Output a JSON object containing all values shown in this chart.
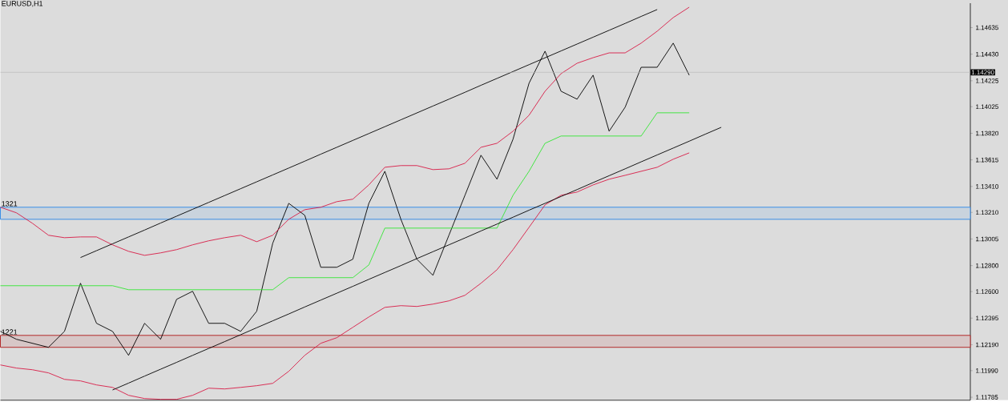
{
  "chart_data": {
    "type": "line",
    "title": "EURUSD,H1",
    "categories": [
      null,
      null,
      null,
      null,
      null,
      null,
      null,
      null,
      null,
      null,
      null,
      null,
      null,
      null,
      null,
      null,
      null,
      null,
      null,
      null,
      null,
      null,
      null,
      null,
      null,
      null,
      null,
      null,
      null,
      null,
      null,
      null,
      null,
      null,
      null,
      null,
      null,
      null,
      null,
      null,
      null,
      null,
      null,
      null,
      null,
      null,
      null,
      null,
      null,
      null,
      null,
      null,
      null,
      null,
      null,
      null,
      null,
      null,
      null,
      null,
      null
    ],
    "series": [
      {
        "color": "#000000",
        "values": [
          1.12293,
          1.12232,
          1.12201,
          1.1217,
          1.12293,
          1.12664,
          1.12355,
          1.12293,
          1.12108,
          1.12355,
          1.12232,
          1.1254,
          1.12602,
          1.12355,
          1.12355,
          1.12293,
          1.12448,
          1.12972,
          1.1328,
          1.13188,
          1.12787,
          1.12787,
          1.12849,
          1.1328,
          1.13527,
          1.13157,
          1.12849,
          1.12725,
          1.13034,
          1.13342,
          1.13651,
          1.13466,
          1.13774,
          1.14206,
          1.14453,
          1.14144,
          1.14083,
          1.14268,
          1.13836,
          1.14021,
          1.14329,
          1.14329,
          1.14515,
          1.14268,
          null,
          null,
          null,
          null,
          null,
          null,
          null,
          null,
          null,
          null,
          null,
          null,
          null,
          null,
          null,
          null,
          null
        ]
      },
      {
        "color": "#d81b45",
        "values": [
          1.1325,
          1.13207,
          1.13126,
          1.13034,
          1.13015,
          1.13021,
          1.13021,
          1.1296,
          1.1291,
          1.12879,
          1.12898,
          1.12923,
          1.1296,
          1.12991,
          1.13015,
          1.13034,
          1.12984,
          1.13034,
          1.13157,
          1.13231,
          1.1325,
          1.13293,
          1.13312,
          1.13422,
          1.13558,
          1.13571,
          1.13571,
          1.1354,
          1.13546,
          1.13589,
          1.13712,
          1.13743,
          1.13836,
          1.13959,
          1.14144,
          1.1428,
          1.1436,
          1.14403,
          1.1444,
          1.1444,
          1.14515,
          1.14607,
          1.14712,
          1.14792,
          null,
          null,
          null,
          null,
          null,
          null,
          null,
          null,
          null,
          null,
          null,
          null,
          null,
          null,
          null,
          null,
          null
        ]
      },
      {
        "color": "#d81b45",
        "values": [
          1.12034,
          1.1201,
          1.11997,
          1.11973,
          1.11923,
          1.11911,
          1.1188,
          1.11861,
          1.118,
          1.11775,
          1.11769,
          1.11769,
          1.118,
          1.11855,
          1.11849,
          1.11861,
          1.11874,
          1.11892,
          1.11985,
          1.12108,
          1.12201,
          1.12244,
          1.12324,
          1.12404,
          1.12478,
          1.12491,
          1.12485,
          1.12503,
          1.12528,
          1.12571,
          1.12664,
          1.12768,
          1.12923,
          1.13095,
          1.13268,
          1.13342,
          1.13367,
          1.13422,
          1.13466,
          1.13496,
          1.13527,
          1.13558,
          1.1362,
          1.13669,
          null,
          null,
          null,
          null,
          null,
          null,
          null,
          null,
          null,
          null,
          null,
          null,
          null,
          null,
          null,
          null,
          null
        ]
      },
      {
        "color": "#33e633",
        "values": [
          1.12645,
          1.12645,
          1.12645,
          1.12645,
          1.12645,
          1.12645,
          1.12645,
          1.12645,
          1.12614,
          1.12614,
          1.12614,
          1.12614,
          1.12614,
          1.12614,
          1.12614,
          1.12614,
          1.12614,
          1.12614,
          1.12707,
          1.12707,
          1.12707,
          1.12707,
          1.12707,
          1.12805,
          1.13089,
          1.13089,
          1.13089,
          1.13089,
          1.13089,
          1.13089,
          1.13089,
          1.13089,
          1.13342,
          1.13527,
          1.13743,
          1.13799,
          1.13799,
          1.13799,
          1.13799,
          1.13799,
          1.13799,
          1.13978,
          1.13978,
          1.13978,
          null,
          null,
          null,
          null,
          null,
          null,
          null,
          null,
          null,
          null,
          null,
          null,
          null,
          null,
          null,
          null,
          null
        ]
      },
      {
        "color": "#000000",
        "values": [
          null,
          null,
          null,
          null,
          null,
          1.12862,
          1.12915,
          1.12968,
          1.13021,
          1.13074,
          1.13128,
          1.13181,
          1.13234,
          1.13287,
          1.1334,
          1.13393,
          1.13446,
          1.13499,
          1.13552,
          1.13605,
          1.13659,
          1.13712,
          1.13765,
          1.13818,
          1.13871,
          1.13924,
          1.13977,
          1.1403,
          1.14083,
          1.14136,
          1.1419,
          1.14243,
          1.14296,
          1.14349,
          1.14402,
          1.14455,
          1.14508,
          1.14561,
          1.14614,
          1.14667,
          1.14721,
          1.14774,
          null,
          null,
          null,
          null,
          null,
          null,
          null,
          null,
          null,
          null,
          null,
          null,
          null,
          null,
          null,
          null,
          null,
          null,
          null
        ]
      },
      {
        "color": "#000000",
        "values": [
          null,
          null,
          null,
          null,
          null,
          null,
          null,
          1.11841,
          1.11894,
          1.11948,
          1.12001,
          1.12054,
          1.12108,
          1.12161,
          1.12214,
          1.12267,
          1.12321,
          1.12374,
          1.12427,
          1.12481,
          1.12534,
          1.12587,
          1.1264,
          1.12694,
          1.12747,
          1.128,
          1.12854,
          1.12907,
          1.1296,
          1.13013,
          1.13067,
          1.1312,
          1.13173,
          1.13227,
          1.1328,
          1.13333,
          1.13386,
          1.1344,
          1.13493,
          1.13546,
          1.136,
          1.13653,
          1.13706,
          1.13759,
          1.13813,
          1.13866,
          null,
          null,
          null,
          null,
          null,
          null,
          null,
          null,
          null,
          null,
          null,
          null,
          null,
          null,
          null
        ]
      }
    ],
    "ylim": [
      1.11762,
      1.14823
    ],
    "yticks": [
      1.14635,
      {
        "value": 1.1443,
        "label": "1.14430"
      },
      1.14225,
      1.14025,
      {
        "value": 1.1382,
        "label": "1.13820"
      },
      1.13615,
      {
        "value": 1.1341,
        "label": "1.13410"
      },
      {
        "value": 1.1321,
        "label": "1.13210"
      },
      1.13005,
      {
        "value": 1.128,
        "label": "1.12800"
      },
      {
        "value": 1.126,
        "label": "1.12600"
      },
      1.12395,
      {
        "value": 1.1219,
        "label": "1.12190"
      },
      {
        "value": 1.1199,
        "label": "1.11990"
      },
      1.11785
    ],
    "tick_labels": "y",
    "ref_lines": [
      {
        "axis": "y",
        "value": 1.1429,
        "label": "1.14290",
        "color": "#b4b4b4"
      }
    ],
    "bands": [
      {
        "axis": "y",
        "from": 1.13157,
        "to": 1.1325,
        "label": "1321",
        "color": "#3a8ee6"
      },
      {
        "axis": "y",
        "from": 1.1217,
        "to": 1.12262,
        "label": "1221",
        "color": "#b22a2a"
      }
    ]
  }
}
